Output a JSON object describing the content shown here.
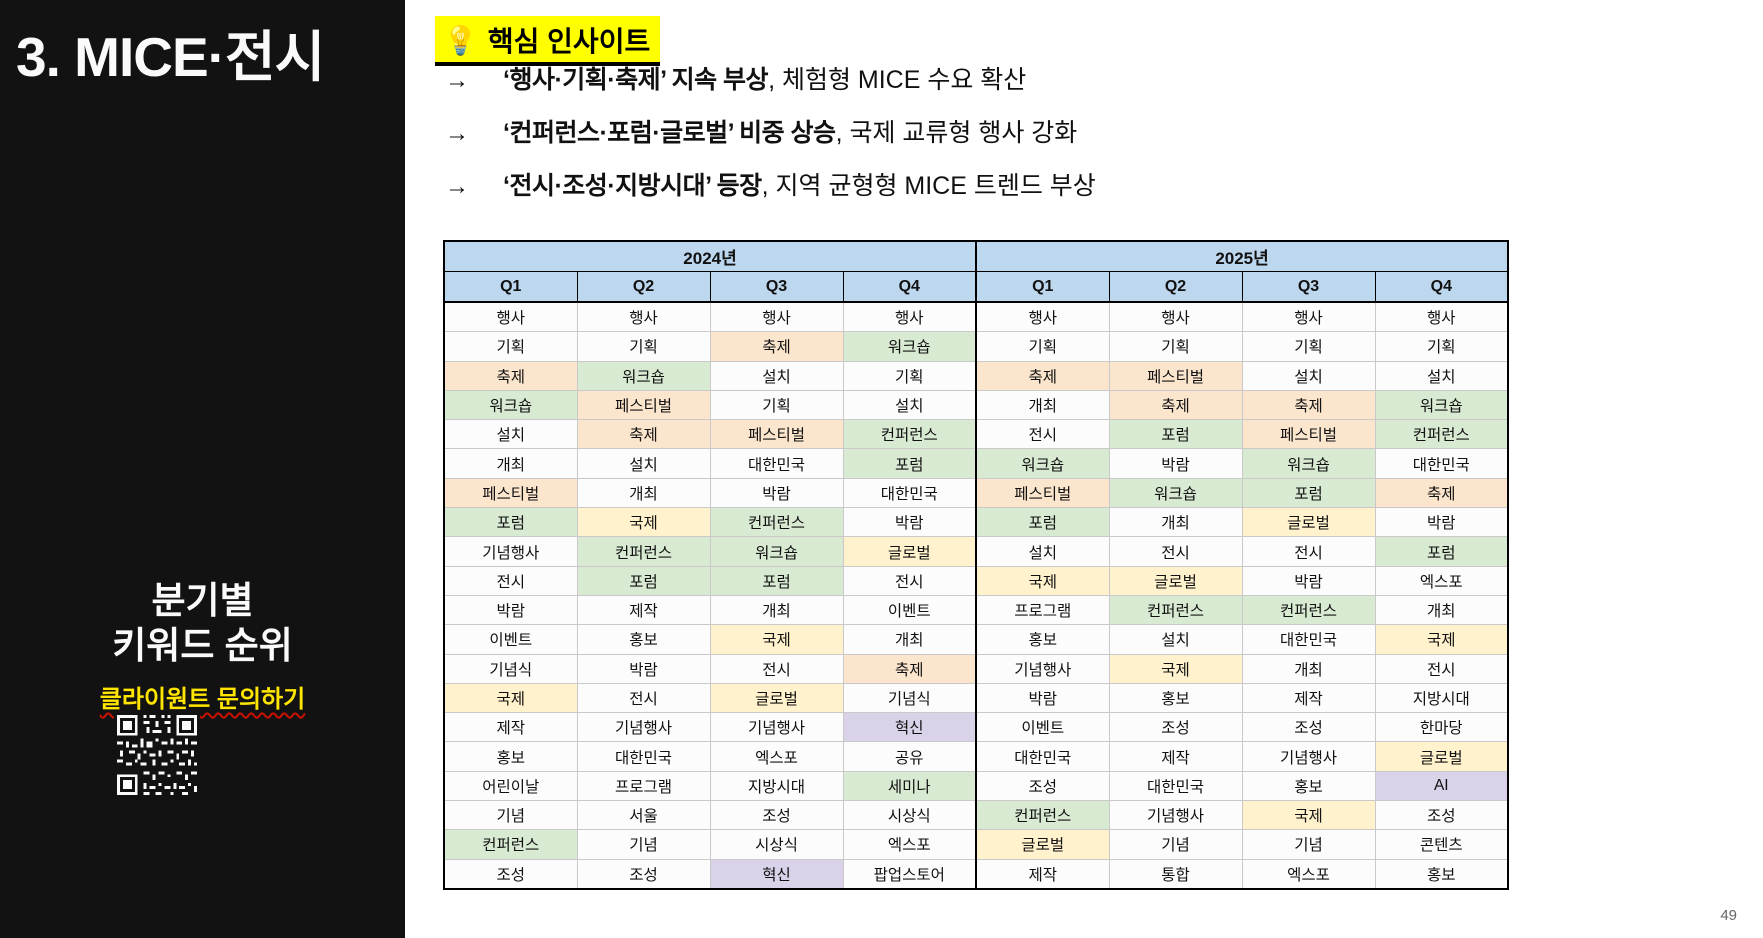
{
  "sidebar": {
    "title": "3. MICE·전시",
    "subtitle": [
      "분기별",
      "키워드 순위"
    ],
    "cta_label": "클라이원트 문의하기"
  },
  "insight": {
    "icon": "💡",
    "title": "핵심 인사이트",
    "bullets": [
      {
        "arrow": "→",
        "bold": "‘행사·기획·축제’ 지속 부상",
        "rest": ", 체험형 MICE 수요 확산"
      },
      {
        "arrow": "→",
        "bold": "‘컨퍼런스·포럼·글로벌’ 비중 상승",
        "rest": ", 국제 교류형 행사 강화"
      },
      {
        "arrow": "→",
        "bold": "‘전시·조성·지방시대’ 등장",
        "rest": ", 지역 균형형 MICE 트렌드 부상"
      }
    ]
  },
  "table": {
    "year_headers": [
      "2024년",
      "2025년"
    ],
    "quarter_headers": [
      "Q1",
      "Q2",
      "Q3",
      "Q4",
      "Q1",
      "Q2",
      "Q3",
      "Q4"
    ],
    "highlight_colors": {
      "o": "#FCE5CD",
      "g": "#D9EAD3",
      "y": "#FFF2CC",
      "p": "#D9D2E9"
    },
    "header_color": "#BDD7EE",
    "columns": [
      {
        "year": "2024년",
        "quarter": "Q1",
        "cells": [
          [
            "행사",
            ""
          ],
          [
            "기획",
            ""
          ],
          [
            "축제",
            "o"
          ],
          [
            "워크숍",
            "g"
          ],
          [
            "설치",
            ""
          ],
          [
            "개최",
            ""
          ],
          [
            "페스티벌",
            "o"
          ],
          [
            "포럼",
            "g"
          ],
          [
            "기념행사",
            ""
          ],
          [
            "전시",
            ""
          ],
          [
            "박람",
            ""
          ],
          [
            "이벤트",
            ""
          ],
          [
            "기념식",
            ""
          ],
          [
            "국제",
            "y"
          ],
          [
            "제작",
            ""
          ],
          [
            "홍보",
            ""
          ],
          [
            "어린이날",
            ""
          ],
          [
            "기념",
            ""
          ],
          [
            "컨퍼런스",
            "g"
          ],
          [
            "조성",
            ""
          ]
        ]
      },
      {
        "year": "2024년",
        "quarter": "Q2",
        "cells": [
          [
            "행사",
            ""
          ],
          [
            "기획",
            ""
          ],
          [
            "워크숍",
            "g"
          ],
          [
            "페스티벌",
            "o"
          ],
          [
            "축제",
            "o"
          ],
          [
            "설치",
            ""
          ],
          [
            "개최",
            ""
          ],
          [
            "국제",
            "y"
          ],
          [
            "컨퍼런스",
            "g"
          ],
          [
            "포럼",
            "g"
          ],
          [
            "제작",
            ""
          ],
          [
            "홍보",
            ""
          ],
          [
            "박람",
            ""
          ],
          [
            "전시",
            ""
          ],
          [
            "기념행사",
            ""
          ],
          [
            "대한민국",
            ""
          ],
          [
            "프로그램",
            ""
          ],
          [
            "서울",
            ""
          ],
          [
            "기념",
            ""
          ],
          [
            "조성",
            ""
          ]
        ]
      },
      {
        "year": "2024년",
        "quarter": "Q3",
        "cells": [
          [
            "행사",
            ""
          ],
          [
            "축제",
            "o"
          ],
          [
            "설치",
            ""
          ],
          [
            "기획",
            ""
          ],
          [
            "페스티벌",
            "o"
          ],
          [
            "대한민국",
            ""
          ],
          [
            "박람",
            ""
          ],
          [
            "컨퍼런스",
            "g"
          ],
          [
            "워크숍",
            "g"
          ],
          [
            "포럼",
            "g"
          ],
          [
            "개최",
            ""
          ],
          [
            "국제",
            "y"
          ],
          [
            "전시",
            ""
          ],
          [
            "글로벌",
            "y"
          ],
          [
            "기념행사",
            ""
          ],
          [
            "엑스포",
            ""
          ],
          [
            "지방시대",
            ""
          ],
          [
            "조성",
            ""
          ],
          [
            "시상식",
            ""
          ],
          [
            "혁신",
            "p"
          ]
        ]
      },
      {
        "year": "2024년",
        "quarter": "Q4",
        "cells": [
          [
            "행사",
            ""
          ],
          [
            "워크숍",
            "g"
          ],
          [
            "기획",
            ""
          ],
          [
            "설치",
            ""
          ],
          [
            "컨퍼런스",
            "g"
          ],
          [
            "포럼",
            "g"
          ],
          [
            "대한민국",
            ""
          ],
          [
            "박람",
            ""
          ],
          [
            "글로벌",
            "y"
          ],
          [
            "전시",
            ""
          ],
          [
            "이벤트",
            ""
          ],
          [
            "개최",
            ""
          ],
          [
            "축제",
            "o"
          ],
          [
            "기념식",
            ""
          ],
          [
            "혁신",
            "p"
          ],
          [
            "공유",
            ""
          ],
          [
            "세미나",
            "g"
          ],
          [
            "시상식",
            ""
          ],
          [
            "엑스포",
            ""
          ],
          [
            "팝업스토어",
            ""
          ]
        ]
      },
      {
        "year": "2025년",
        "quarter": "Q1",
        "cells": [
          [
            "행사",
            ""
          ],
          [
            "기획",
            ""
          ],
          [
            "축제",
            "o"
          ],
          [
            "개최",
            ""
          ],
          [
            "전시",
            ""
          ],
          [
            "워크숍",
            "g"
          ],
          [
            "페스티벌",
            "o"
          ],
          [
            "포럼",
            "g"
          ],
          [
            "설치",
            ""
          ],
          [
            "국제",
            "y"
          ],
          [
            "프로그램",
            ""
          ],
          [
            "홍보",
            ""
          ],
          [
            "기념행사",
            ""
          ],
          [
            "박람",
            ""
          ],
          [
            "이벤트",
            ""
          ],
          [
            "대한민국",
            ""
          ],
          [
            "조성",
            ""
          ],
          [
            "컨퍼런스",
            "g"
          ],
          [
            "글로벌",
            "y"
          ],
          [
            "제작",
            ""
          ]
        ]
      },
      {
        "year": "2025년",
        "quarter": "Q2",
        "cells": [
          [
            "행사",
            ""
          ],
          [
            "기획",
            ""
          ],
          [
            "페스티벌",
            "o"
          ],
          [
            "축제",
            "o"
          ],
          [
            "포럼",
            "g"
          ],
          [
            "박람",
            ""
          ],
          [
            "워크숍",
            "g"
          ],
          [
            "개최",
            ""
          ],
          [
            "전시",
            ""
          ],
          [
            "글로벌",
            "y"
          ],
          [
            "컨퍼런스",
            "g"
          ],
          [
            "설치",
            ""
          ],
          [
            "국제",
            "y"
          ],
          [
            "홍보",
            ""
          ],
          [
            "조성",
            ""
          ],
          [
            "제작",
            ""
          ],
          [
            "대한민국",
            ""
          ],
          [
            "기념행사",
            ""
          ],
          [
            "기념",
            ""
          ],
          [
            "통합",
            ""
          ]
        ]
      },
      {
        "year": "2025년",
        "quarter": "Q3",
        "cells": [
          [
            "행사",
            ""
          ],
          [
            "기획",
            ""
          ],
          [
            "설치",
            ""
          ],
          [
            "축제",
            "o"
          ],
          [
            "페스티벌",
            "o"
          ],
          [
            "워크숍",
            "g"
          ],
          [
            "포럼",
            "g"
          ],
          [
            "글로벌",
            "y"
          ],
          [
            "전시",
            ""
          ],
          [
            "박람",
            ""
          ],
          [
            "컨퍼런스",
            "g"
          ],
          [
            "대한민국",
            ""
          ],
          [
            "개최",
            ""
          ],
          [
            "제작",
            ""
          ],
          [
            "조성",
            ""
          ],
          [
            "기념행사",
            ""
          ],
          [
            "홍보",
            ""
          ],
          [
            "국제",
            "y"
          ],
          [
            "기념",
            ""
          ],
          [
            "엑스포",
            ""
          ]
        ]
      },
      {
        "year": "2025년",
        "quarter": "Q4",
        "cells": [
          [
            "행사",
            ""
          ],
          [
            "기획",
            ""
          ],
          [
            "설치",
            ""
          ],
          [
            "워크숍",
            "g"
          ],
          [
            "컨퍼런스",
            "g"
          ],
          [
            "대한민국",
            ""
          ],
          [
            "축제",
            "o"
          ],
          [
            "박람",
            ""
          ],
          [
            "포럼",
            "g"
          ],
          [
            "엑스포",
            ""
          ],
          [
            "개최",
            ""
          ],
          [
            "국제",
            "y"
          ],
          [
            "전시",
            ""
          ],
          [
            "지방시대",
            ""
          ],
          [
            "한마당",
            ""
          ],
          [
            "글로벌",
            "y"
          ],
          [
            "AI",
            "p"
          ],
          [
            "조성",
            ""
          ],
          [
            "콘텐츠",
            ""
          ],
          [
            "홍보",
            ""
          ]
        ]
      }
    ]
  },
  "page_number": "49"
}
